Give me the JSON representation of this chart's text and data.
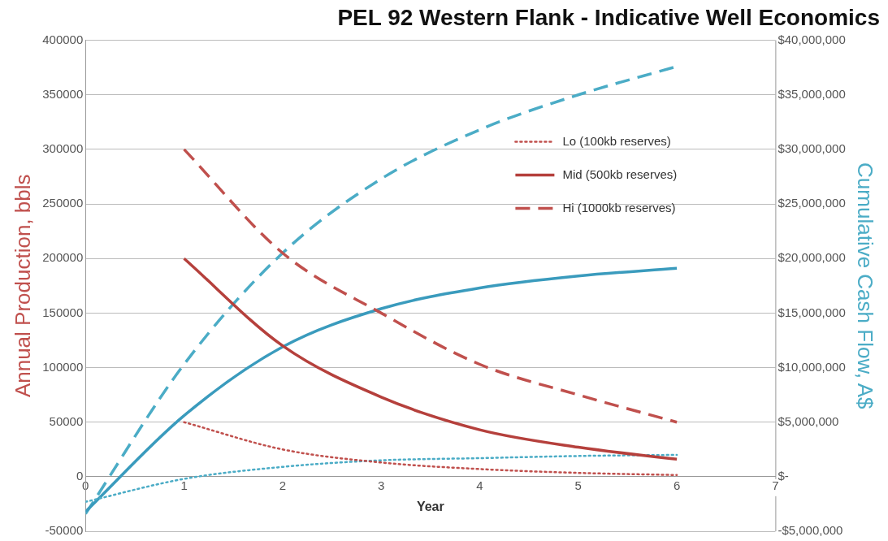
{
  "chart_data": {
    "type": "line",
    "title": "PEL 92 Western Flank - Indicative Well Economics",
    "xlabel": "Year",
    "ylabel": "Annual Production, bbls",
    "y2label": "Cumulative Cash Flow, A$",
    "xlim": [
      0,
      7
    ],
    "xticks": [
      0,
      1,
      2,
      3,
      4,
      5,
      6,
      7
    ],
    "ylim": [
      -50000,
      400000
    ],
    "yticks": [
      -50000,
      0,
      50000,
      100000,
      150000,
      200000,
      250000,
      300000,
      350000,
      400000
    ],
    "y2lim": [
      -5000000,
      40000000
    ],
    "y2ticks": [
      {
        "value": -5000000,
        "label": "-$5,000,000"
      },
      {
        "value": 0,
        "label": "$-"
      },
      {
        "value": 5000000,
        "label": "$5,000,000"
      },
      {
        "value": 10000000,
        "label": "$10,000,000"
      },
      {
        "value": 15000000,
        "label": "$15,000,000"
      },
      {
        "value": 20000000,
        "label": "$20,000,000"
      },
      {
        "value": 25000000,
        "label": "$25,000,000"
      },
      {
        "value": 30000000,
        "label": "$30,000,000"
      },
      {
        "value": 35000000,
        "label": "$35,000,000"
      },
      {
        "value": 40000000,
        "label": "$40,000,000"
      }
    ],
    "grid": "y",
    "legend": "top right",
    "marker": "none",
    "series": [
      {
        "name": "Lo (100kb reserves)",
        "color": "#c0504d",
        "line_style": "dotted",
        "x": [
          1,
          2,
          3,
          4,
          5,
          6
        ],
        "values": [
          50000,
          25000,
          13000,
          7000,
          3500,
          1500
        ]
      },
      {
        "name": "Mid (500kb reserves)",
        "color": "#b5403c",
        "line_style": "solid",
        "x": [
          1,
          2,
          3,
          4,
          5,
          6
        ],
        "values": [
          200000,
          120000,
          73000,
          43000,
          27000,
          16000
        ]
      },
      {
        "name": "Hi (1000kb reserves)",
        "color": "#c0504d",
        "line_style": "dashed",
        "x": [
          1,
          2,
          3,
          4,
          5,
          6
        ],
        "values": [
          300000,
          205000,
          150000,
          103000,
          75000,
          50000
        ]
      },
      {
        "color": "#4bacc6",
        "line_style": "dotted",
        "axis": "y2",
        "x": [
          0,
          1,
          2,
          3,
          4,
          5,
          6
        ],
        "values": [
          -2300000,
          -200000,
          900000,
          1500000,
          1700000,
          1900000,
          2000000
        ]
      },
      {
        "color": "#3a9bbd",
        "line_style": "solid",
        "axis": "y2",
        "x": [
          0,
          1,
          2,
          3,
          4,
          5,
          6
        ],
        "values": [
          -3200000,
          5600000,
          11900000,
          15400000,
          17300000,
          18400000,
          19100000
        ]
      },
      {
        "color": "#4bacc6",
        "line_style": "dashed",
        "axis": "y2",
        "x": [
          0,
          1,
          2,
          3,
          4,
          5,
          6
        ],
        "values": [
          -3400000,
          10300000,
          20500000,
          27300000,
          31800000,
          35000000,
          37600000
        ]
      }
    ]
  }
}
